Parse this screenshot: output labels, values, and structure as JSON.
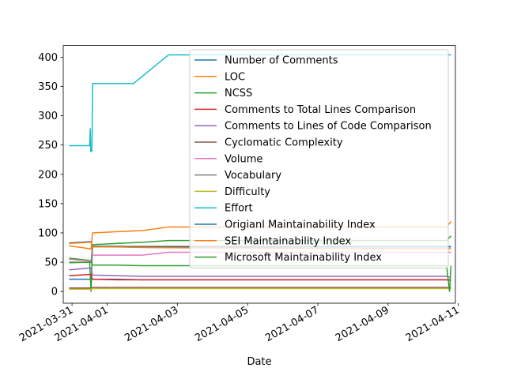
{
  "chart_data": {
    "type": "line",
    "xlabel": "Date",
    "ylabel": "",
    "title": "",
    "xlim": [
      "2021-03-30T18:00",
      "2021-04-10T22:00"
    ],
    "ylim": [
      -20,
      420
    ],
    "x_ticks": [
      {
        "x": "2021-03-31",
        "label": "2021-03-31"
      },
      {
        "x": "2021-04-01",
        "label": "2021-04-01"
      },
      {
        "x": "2021-04-03",
        "label": "2021-04-03"
      },
      {
        "x": "2021-04-05",
        "label": "2021-04-05"
      },
      {
        "x": "2021-04-07",
        "label": "2021-04-07"
      },
      {
        "x": "2021-04-09",
        "label": "2021-04-09"
      },
      {
        "x": "2021-04-11",
        "label": "2021-04-11"
      }
    ],
    "y_ticks": [
      0,
      50,
      100,
      150,
      200,
      250,
      300,
      350,
      400
    ],
    "legend_position": "upper-right",
    "grid": false,
    "series": [
      {
        "name": "Number of Comments",
        "color": "#1f77b4",
        "points": [
          [
            "2021-03-30T22:00",
            21
          ],
          [
            "2021-03-31T12:00",
            21
          ],
          [
            "2021-03-31T13:00",
            21
          ],
          [
            "2021-03-31T14:00",
            21
          ],
          [
            "2021-04-01T06:00",
            21
          ],
          [
            "2021-04-02T00:00",
            20
          ],
          [
            "2021-04-05T00:00",
            20
          ],
          [
            "2021-04-10T16:00",
            20
          ],
          [
            "2021-04-10T19:00",
            20
          ]
        ]
      },
      {
        "name": "LOC",
        "color": "#ff7f0e",
        "points": [
          [
            "2021-03-30T22:00",
            78
          ],
          [
            "2021-03-31T12:00",
            73
          ],
          [
            "2021-03-31T13:00",
            72
          ],
          [
            "2021-03-31T14:00",
            100
          ],
          [
            "2021-04-01T06:00",
            102
          ],
          [
            "2021-04-02T00:00",
            104
          ],
          [
            "2021-04-02T18:00",
            110
          ],
          [
            "2021-04-05T00:00",
            110
          ],
          [
            "2021-04-10T16:00",
            110
          ],
          [
            "2021-04-10T19:00",
            120
          ]
        ]
      },
      {
        "name": "NCSS",
        "color": "#2ca02c",
        "points": [
          [
            "2021-03-30T22:00",
            57
          ],
          [
            "2021-03-31T12:00",
            53
          ],
          [
            "2021-03-31T13:00",
            0
          ],
          [
            "2021-03-31T14:00",
            80
          ],
          [
            "2021-04-01T06:00",
            82
          ],
          [
            "2021-04-02T00:00",
            84
          ],
          [
            "2021-04-02T18:00",
            87
          ],
          [
            "2021-04-05T00:00",
            87
          ],
          [
            "2021-04-10T16:00",
            87
          ],
          [
            "2021-04-10T19:00",
            95
          ]
        ]
      },
      {
        "name": "Comments to Total Lines Comparison",
        "color": "#d62728",
        "points": [
          [
            "2021-03-30T22:00",
            27
          ],
          [
            "2021-03-31T12:00",
            29
          ],
          [
            "2021-03-31T13:00",
            29
          ],
          [
            "2021-03-31T14:00",
            21
          ],
          [
            "2021-04-01T06:00",
            20
          ],
          [
            "2021-04-02T00:00",
            20
          ],
          [
            "2021-04-05T00:00",
            20
          ],
          [
            "2021-04-10T16:00",
            20
          ],
          [
            "2021-04-10T19:00",
            19
          ]
        ]
      },
      {
        "name": "Comments to Lines of Code Comparison",
        "color": "#9467bd",
        "points": [
          [
            "2021-03-30T22:00",
            37
          ],
          [
            "2021-03-31T12:00",
            40
          ],
          [
            "2021-03-31T13:00",
            40
          ],
          [
            "2021-03-31T14:00",
            28
          ],
          [
            "2021-04-01T06:00",
            27
          ],
          [
            "2021-04-02T00:00",
            26
          ],
          [
            "2021-04-05T00:00",
            26
          ],
          [
            "2021-04-10T16:00",
            26
          ],
          [
            "2021-04-10T19:00",
            24
          ]
        ]
      },
      {
        "name": "Cyclomatic Complexity",
        "color": "#8c564b",
        "points": [
          [
            "2021-03-30T22:00",
            6
          ],
          [
            "2021-03-31T12:00",
            6
          ],
          [
            "2021-03-31T13:00",
            6
          ],
          [
            "2021-03-31T14:00",
            7
          ],
          [
            "2021-04-01T06:00",
            7
          ],
          [
            "2021-04-02T00:00",
            7
          ],
          [
            "2021-04-05T00:00",
            7
          ],
          [
            "2021-04-10T16:00",
            7
          ],
          [
            "2021-04-10T19:00",
            7
          ]
        ]
      },
      {
        "name": "Volume",
        "color": "#e377c2",
        "points": [
          [
            "2021-03-30T22:00",
            55
          ],
          [
            "2021-03-31T12:00",
            52
          ],
          [
            "2021-03-31T13:00",
            52
          ],
          [
            "2021-03-31T14:00",
            62
          ],
          [
            "2021-04-01T06:00",
            62
          ],
          [
            "2021-04-02T00:00",
            62
          ],
          [
            "2021-04-02T18:00",
            67
          ],
          [
            "2021-04-05T00:00",
            67
          ],
          [
            "2021-04-10T16:00",
            67
          ],
          [
            "2021-04-10T19:00",
            67
          ]
        ]
      },
      {
        "name": "Vocabulary",
        "color": "#7f7f7f",
        "points": [
          [
            "2021-03-30T22:00",
            50
          ],
          [
            "2021-03-31T12:00",
            50
          ],
          [
            "2021-03-31T13:00",
            50
          ],
          [
            "2021-03-31T14:00",
            77
          ],
          [
            "2021-04-01T06:00",
            77
          ],
          [
            "2021-04-02T00:00",
            77
          ],
          [
            "2021-04-05T00:00",
            77
          ],
          [
            "2021-04-10T16:00",
            77
          ],
          [
            "2021-04-10T19:00",
            77
          ]
        ]
      },
      {
        "name": "Difficulty",
        "color": "#bcbd22",
        "points": [
          [
            "2021-03-30T22:00",
            4
          ],
          [
            "2021-03-31T12:00",
            4
          ],
          [
            "2021-03-31T13:00",
            4
          ],
          [
            "2021-03-31T14:00",
            5
          ],
          [
            "2021-04-01T06:00",
            5
          ],
          [
            "2021-04-02T00:00",
            5
          ],
          [
            "2021-04-05T00:00",
            5
          ],
          [
            "2021-04-10T16:00",
            5
          ],
          [
            "2021-04-10T19:00",
            5
          ]
        ]
      },
      {
        "name": "Effort",
        "color": "#17becf",
        "points": [
          [
            "2021-03-30T22:00",
            249
          ],
          [
            "2021-03-31T12:00",
            249
          ],
          [
            "2021-03-31T12:30",
            278
          ],
          [
            "2021-03-31T12:45",
            239
          ],
          [
            "2021-03-31T13:30",
            239
          ],
          [
            "2021-03-31T13:45",
            268
          ],
          [
            "2021-03-31T14:00",
            355
          ],
          [
            "2021-04-01T06:00",
            355
          ],
          [
            "2021-04-01T18:00",
            355
          ],
          [
            "2021-04-02T18:00",
            404
          ],
          [
            "2021-04-05T00:00",
            404
          ],
          [
            "2021-04-10T16:00",
            404
          ],
          [
            "2021-04-10T19:00",
            404
          ]
        ]
      },
      {
        "name": "Origianl Maintainability Index",
        "color": "#1f77b4",
        "points": [
          [
            "2021-03-30T22:00",
            83
          ],
          [
            "2021-03-31T12:00",
            85
          ],
          [
            "2021-03-31T13:00",
            85
          ],
          [
            "2021-03-31T14:00",
            77
          ],
          [
            "2021-04-01T06:00",
            77
          ],
          [
            "2021-04-02T00:00",
            76
          ],
          [
            "2021-04-05T00:00",
            76
          ],
          [
            "2021-04-10T16:00",
            76
          ],
          [
            "2021-04-10T19:00",
            76
          ]
        ]
      },
      {
        "name": "SEI Maintainability Index",
        "color": "#ff7f0e",
        "points": [
          [
            "2021-03-30T22:00",
            82
          ],
          [
            "2021-03-31T12:00",
            84
          ],
          [
            "2021-03-31T13:00",
            84
          ],
          [
            "2021-03-31T14:00",
            76
          ],
          [
            "2021-04-01T06:00",
            76
          ],
          [
            "2021-04-02T00:00",
            75
          ],
          [
            "2021-04-05T00:00",
            74
          ],
          [
            "2021-04-10T16:00",
            73
          ],
          [
            "2021-04-10T19:00",
            73
          ]
        ]
      },
      {
        "name": "Microsoft Maintainability Index",
        "color": "#2ca02c",
        "points": [
          [
            "2021-03-30T22:00",
            49
          ],
          [
            "2021-03-31T12:00",
            50
          ],
          [
            "2021-03-31T13:00",
            50
          ],
          [
            "2021-03-31T14:00",
            45
          ],
          [
            "2021-04-01T06:00",
            45
          ],
          [
            "2021-04-02T00:00",
            44
          ],
          [
            "2021-04-05T00:00",
            44
          ],
          [
            "2021-04-10T16:00",
            44
          ],
          [
            "2021-04-10T18:00",
            0
          ],
          [
            "2021-04-10T19:00",
            44
          ]
        ]
      }
    ]
  }
}
